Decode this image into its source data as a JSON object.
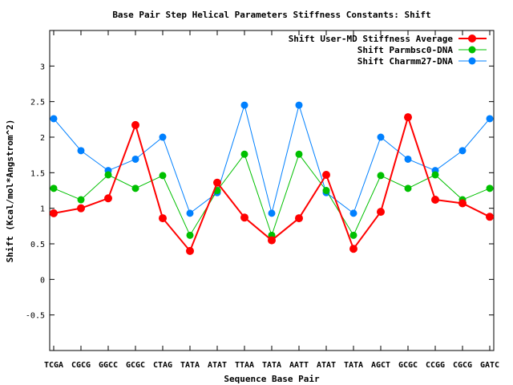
{
  "chart_data": {
    "type": "line",
    "title": "Base Pair Step Helical Parameters Stiffness Constants: Shift",
    "xlabel": "Sequence Base Pair",
    "ylabel": "Shift (Kcal/mol*Angstrom^2)",
    "ylim": [
      -1,
      3.5
    ],
    "yticks": [
      -0.5,
      0,
      0.5,
      1,
      1.5,
      2,
      2.5,
      3
    ],
    "ytick_labels": [
      "-0.5",
      "0",
      "0.5",
      "1",
      "1.5",
      "2",
      "2.5",
      "3"
    ],
    "categories": [
      "TCGA",
      "CGCG",
      "GGCC",
      "GCGC",
      "CTAG",
      "TATA",
      "ATAT",
      "TTAA",
      "TATA",
      "AATT",
      "ATAT",
      "TATA",
      "AGCT",
      "GCGC",
      "CCGG",
      "CGCG",
      "GATC"
    ],
    "grid": false,
    "legend_position": "top-right",
    "series": [
      {
        "name": "Shift User-MD Stiffness Average",
        "color": "#ff0000",
        "values": [
          0.93,
          1.0,
          1.14,
          2.17,
          0.86,
          0.4,
          1.36,
          0.87,
          0.55,
          0.86,
          1.47,
          0.43,
          0.95,
          2.28,
          1.12,
          1.07,
          0.88
        ]
      },
      {
        "name": "Shift Parmbsc0-DNA",
        "color": "#00c000",
        "values": [
          1.28,
          1.12,
          1.47,
          1.28,
          1.46,
          0.62,
          1.25,
          1.76,
          0.62,
          1.76,
          1.25,
          0.62,
          1.46,
          1.28,
          1.47,
          1.12,
          1.28
        ]
      },
      {
        "name": "Shift Charmm27-DNA",
        "color": "#0080ff",
        "values": [
          2.26,
          1.81,
          1.53,
          1.69,
          2.0,
          0.93,
          1.22,
          2.45,
          0.93,
          2.45,
          1.22,
          0.93,
          2.0,
          1.69,
          1.53,
          1.81,
          2.26
        ]
      }
    ]
  }
}
